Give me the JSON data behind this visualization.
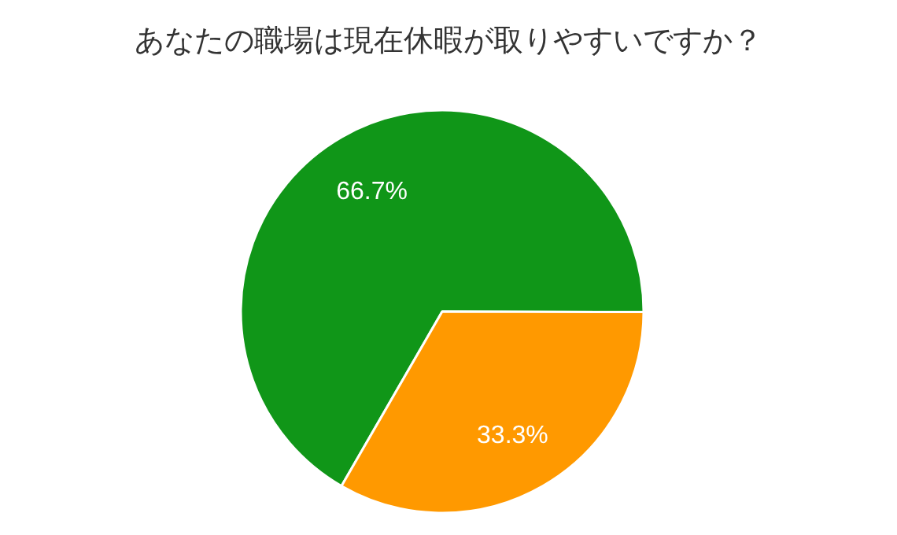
{
  "chart_data": {
    "type": "pie",
    "title": "あなたの職場は現在休暇が取りやすいですか？",
    "categories": [
      null,
      null
    ],
    "values": [
      66.7,
      33.3
    ],
    "colors": [
      "#109618",
      "#ff9900"
    ],
    "value_labels": [
      "66.7%",
      "33.3%"
    ]
  }
}
